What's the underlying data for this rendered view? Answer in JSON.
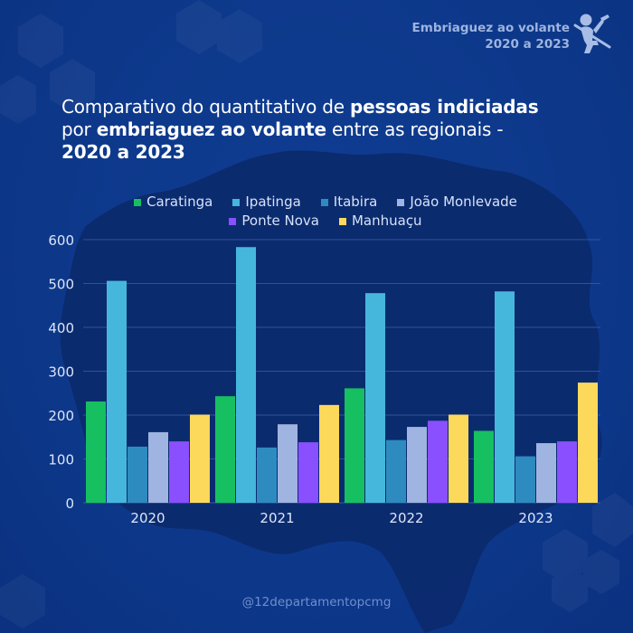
{
  "brand": {
    "line1": "Embriaguez ao volante",
    "line2": "2020 a 2023",
    "icon": "drunk-driver-seatbelt-icon"
  },
  "title": {
    "part1": "Comparativo do quantitativo de ",
    "bold1": "pessoas indiciadas",
    "part2": "por ",
    "bold2": "embriaguez ao volante",
    "part3": " entre as regionais -",
    "bold3": "2020 a 2023"
  },
  "footer": {
    "handle": "@12departamentopcmg"
  },
  "colors": {
    "background": "#0e3b8c",
    "map": "#0c2a6e",
    "gridline": "#3a5aa6",
    "axis_text": "#dde6f7"
  },
  "chart_data": {
    "type": "bar",
    "title": "Comparativo do quantitativo de pessoas indiciadas por embriaguez ao volante entre as regionais - 2020 a 2023",
    "xlabel": "",
    "ylabel": "",
    "categories": [
      "2020",
      "2021",
      "2022",
      "2023"
    ],
    "ylim": [
      0,
      600
    ],
    "yticks": [
      0,
      100,
      200,
      300,
      400,
      500,
      600
    ],
    "grid": true,
    "legend_position": "top-center",
    "series": [
      {
        "name": "Caratinga",
        "color": "#16c060",
        "values": [
          231,
          243,
          261,
          164
        ]
      },
      {
        "name": "Ipatinga",
        "color": "#46b7dc",
        "values": [
          506,
          583,
          478,
          482
        ]
      },
      {
        "name": "Itabira",
        "color": "#2e8bbf",
        "values": [
          128,
          126,
          143,
          106
        ]
      },
      {
        "name": "João Monlevade",
        "color": "#9fb4e0",
        "values": [
          161,
          179,
          173,
          136
        ]
      },
      {
        "name": "Ponte Nova",
        "color": "#8a4fff",
        "values": [
          140,
          138,
          187,
          140
        ]
      },
      {
        "name": "Manhuaçu",
        "color": "#fcd95a",
        "values": [
          201,
          223,
          201,
          274
        ]
      }
    ]
  }
}
